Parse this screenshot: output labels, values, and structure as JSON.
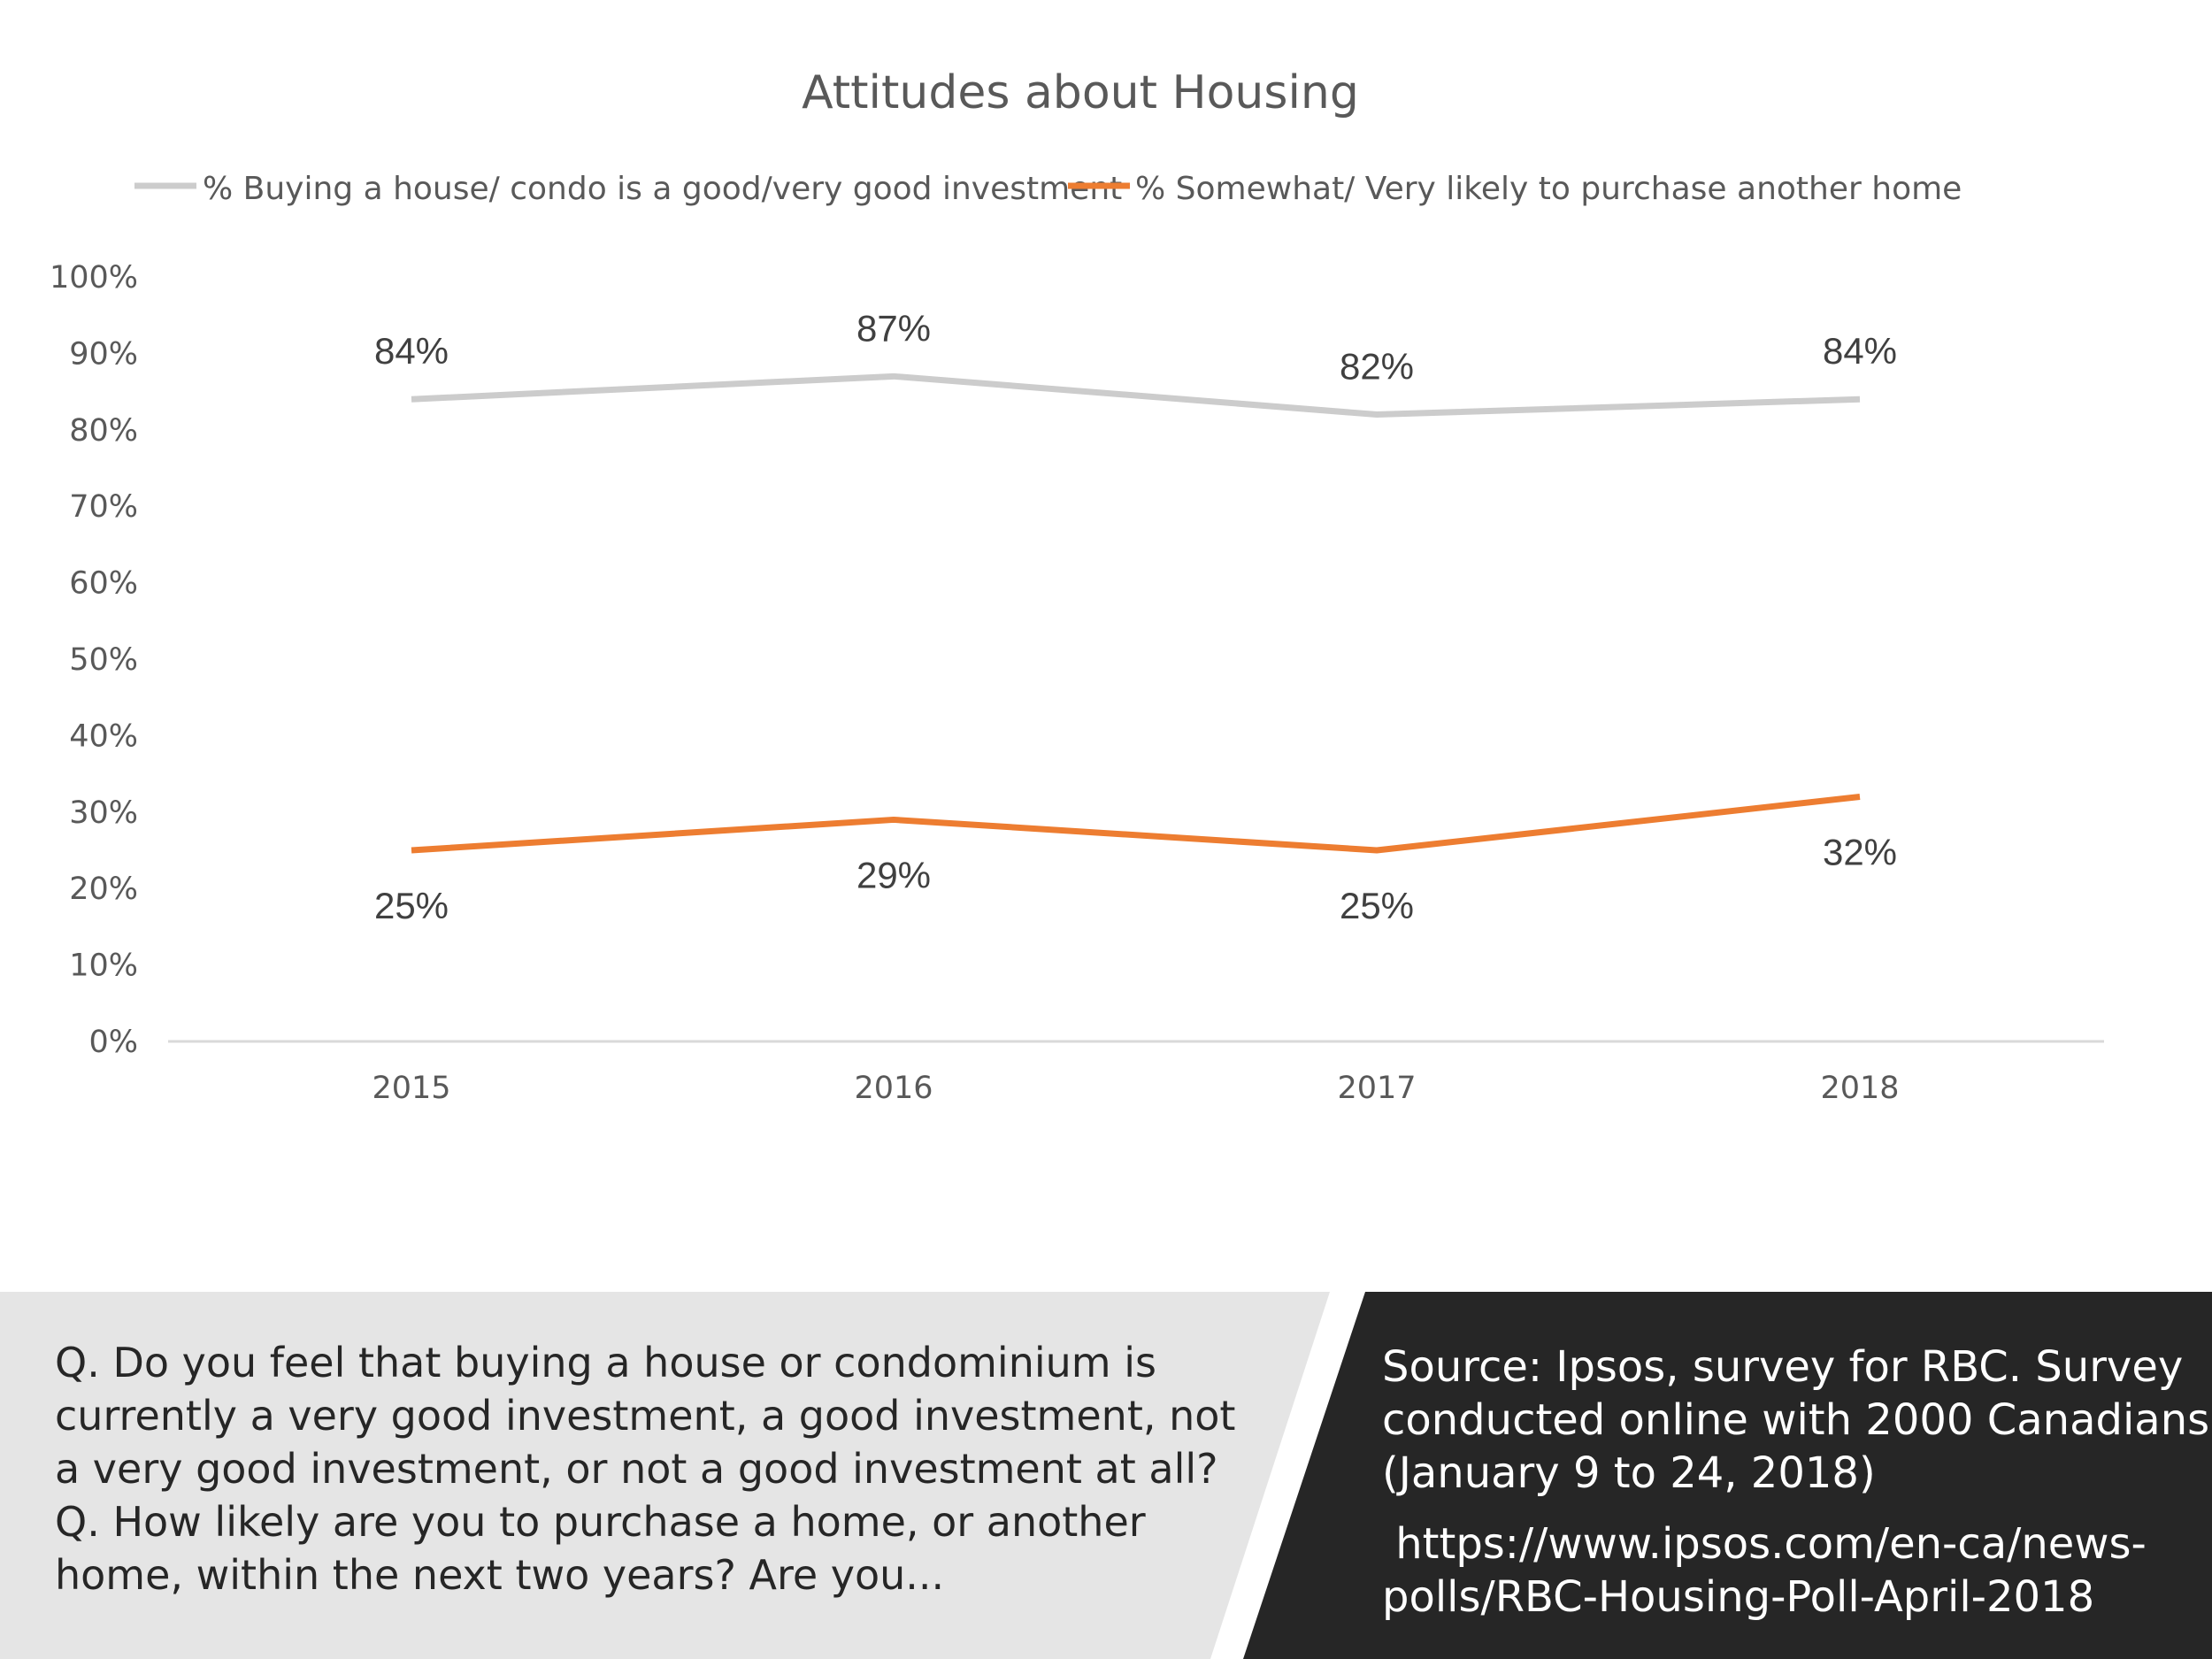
{
  "chart_data": {
    "type": "line",
    "title": "Attitudes about Housing",
    "categories": [
      "2015",
      "2016",
      "2017",
      "2018"
    ],
    "series": [
      {
        "name": "% Buying a house/ condo is a good/very good investment",
        "values": [
          84,
          87,
          82,
          84
        ],
        "labels": [
          "84%",
          "87%",
          "82%",
          "84%"
        ],
        "color": "#cccccc"
      },
      {
        "name": "% Somewhat/ Very likely to purchase another home",
        "values": [
          25,
          29,
          25,
          32
        ],
        "labels": [
          "25%",
          "29%",
          "25%",
          "32%"
        ],
        "color": "#ed7d31"
      }
    ],
    "yticks": [
      "0%",
      "10%",
      "20%",
      "30%",
      "40%",
      "50%",
      "60%",
      "70%",
      "80%",
      "90%",
      "100%"
    ],
    "ylim": [
      0,
      100
    ],
    "xlabel": "",
    "ylabel": "",
    "grid": false,
    "legend": "top"
  },
  "footer": {
    "question_lines": [
      "Q. Do you feel that buying a house or condominium is",
      "currently a very good investment, a good investment, not",
      "a very good investment, or not a good investment at all?",
      "Q. How likely are you to purchase a home, or another",
      "home, within the next two years? Are you..."
    ],
    "source_lines": [
      "Source:  Ipsos, survey for RBC. Survey",
      "conducted online with 2000 Canadians",
      "(January 9 to 24, 2018)"
    ],
    "url_lines": [
      " https://www.ipsos.com/en-ca/news-",
      "polls/RBC-Housing-Poll-April-2018"
    ],
    "left_panel_color": "#e5e5e5",
    "right_panel_color": "#262626"
  }
}
